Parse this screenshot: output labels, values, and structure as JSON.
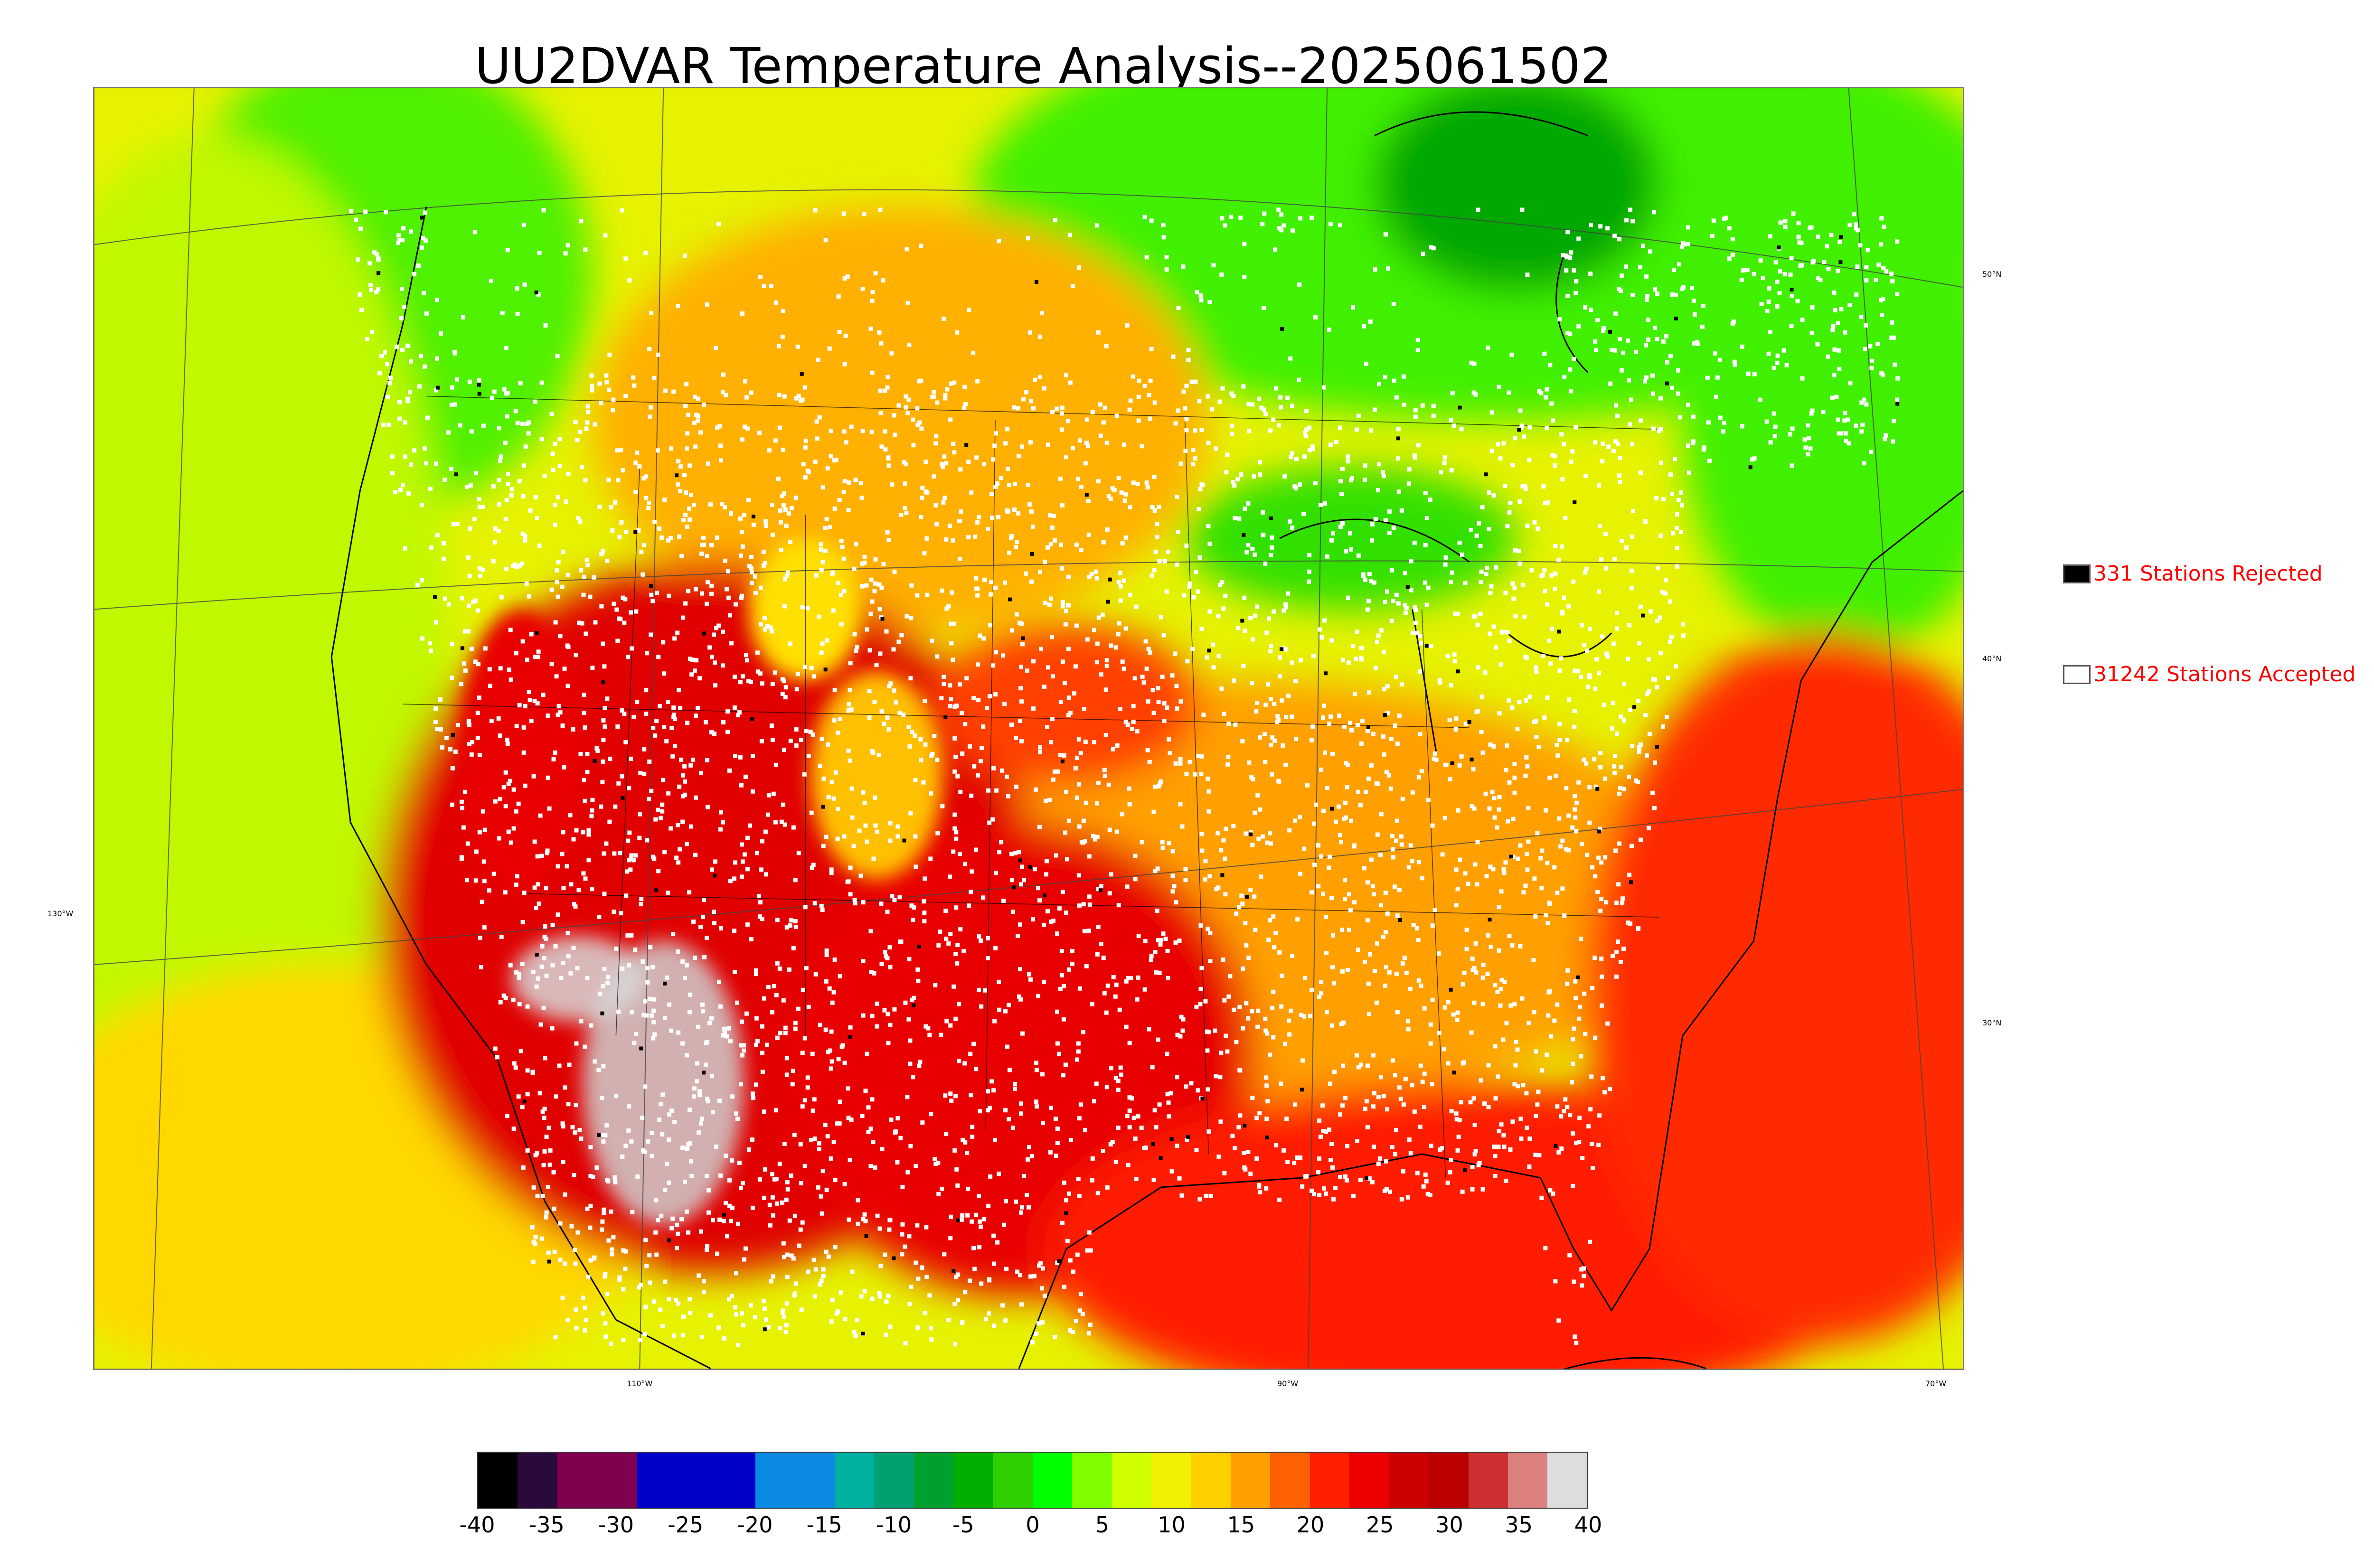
{
  "title": "UU2DVAR Temperature Analysis--2025061502",
  "legend": {
    "rejected": {
      "label": "331 Stations Rejected",
      "color": "#000000"
    },
    "accepted": {
      "label": "31242 Stations Accepted",
      "color": "#ffffff"
    }
  },
  "graticule": {
    "lon_labels": [
      "130°W",
      "110°W",
      "90°W",
      "70°W"
    ],
    "lat_labels": [
      "50°N",
      "40°N",
      "30°N"
    ]
  },
  "colorbar": {
    "ticks": [
      "-40",
      "-35",
      "-30",
      "-25",
      "-20",
      "-15",
      "-10",
      "-5",
      "0",
      "5",
      "10",
      "15",
      "20",
      "25",
      "30",
      "35",
      "40"
    ],
    "range": [
      -40,
      40
    ],
    "units_per_segment": 2.5,
    "colors": [
      "#000000",
      "#2a0a3a",
      "#800050",
      "#800050",
      "#0000c8",
      "#0000c8",
      "#0000c8",
      "#0a8ae0",
      "#0a8ae0",
      "#00b0a0",
      "#00a070",
      "#00a030",
      "#00b000",
      "#30d000",
      "#00ff00",
      "#80ff00",
      "#d0ff00",
      "#f0f000",
      "#ffd000",
      "#ffa000",
      "#ff6000",
      "#ff2000",
      "#ee0000",
      "#cc0000",
      "#bb0000",
      "#cc3030",
      "#dd8080",
      "#dddddd"
    ]
  },
  "colors": {
    "cold": "#00c000",
    "cool": "#80ff00",
    "mild": "#e8ff00",
    "warm": "#ffc000",
    "hot": "#ff3000",
    "very_hot": "#e00000",
    "extreme": "#c8c8c8",
    "station_accepted": "#ffffff",
    "station_rejected": "#000000",
    "coast": "#000000"
  }
}
